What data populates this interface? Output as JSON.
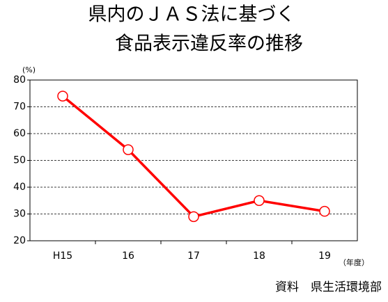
{
  "chart_data": {
    "type": "line",
    "title": [
      "県内のＪＡＳ法に基づく",
      "食品表示違反率の推移"
    ],
    "y_unit": "(%)",
    "x_unit": "（年度）",
    "source": "資料　県生活環境部",
    "categories": [
      "H15",
      "16",
      "17",
      "18",
      "19"
    ],
    "series": [
      {
        "name": "違反率",
        "color": "#ff0000",
        "values": [
          74,
          54,
          29,
          35,
          31
        ]
      }
    ],
    "ylim": [
      20,
      80
    ],
    "yticks": [
      20,
      30,
      40,
      50,
      60,
      70,
      80
    ],
    "grid": true
  }
}
